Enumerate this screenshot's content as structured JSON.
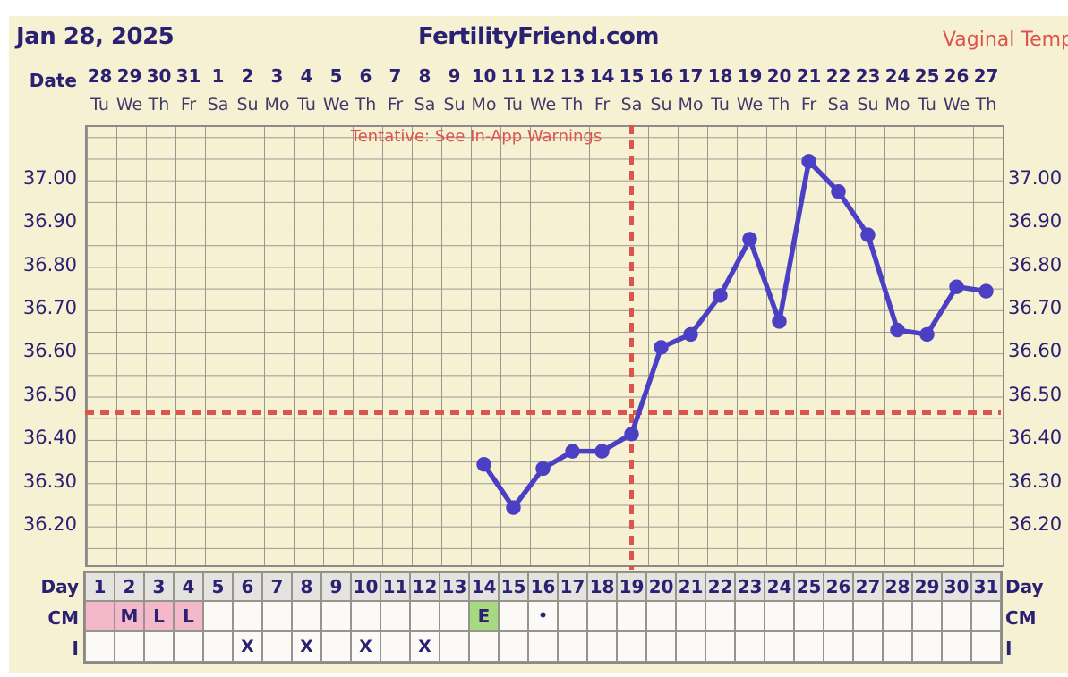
{
  "header": {
    "date": "Jan 28, 2025",
    "site_title": "FertilityFriend.com",
    "temp_mode_label": "Vaginal Temp"
  },
  "warning_text": "Tentative: See In-App Warnings",
  "date_axis": {
    "label": "Date",
    "dates": [
      "28",
      "29",
      "30",
      "31",
      "1",
      "2",
      "3",
      "4",
      "5",
      "6",
      "7",
      "8",
      "9",
      "10",
      "11",
      "12",
      "13",
      "14",
      "15",
      "16",
      "17",
      "18",
      "19",
      "20",
      "21",
      "22",
      "23",
      "24",
      "25",
      "26",
      "27"
    ],
    "weekdays": [
      "Tu",
      "We",
      "Th",
      "Fr",
      "Sa",
      "Su",
      "Mo",
      "Tu",
      "We",
      "Th",
      "Fr",
      "Sa",
      "Su",
      "Mo",
      "Tu",
      "We",
      "Th",
      "Fr",
      "Sa",
      "Su",
      "Mo",
      "Tu",
      "We",
      "Th",
      "Fr",
      "Sa",
      "Su",
      "Mo",
      "Tu",
      "We",
      "Th"
    ]
  },
  "chart_data": {
    "type": "line",
    "title": "FertilityFriend.com",
    "xlabel": "Day",
    "ylabel": "Vaginal Temp",
    "x_range_days": [
      1,
      31
    ],
    "ylim": [
      36.12,
      37.12
    ],
    "grid": true,
    "y_ticks": [
      "37.00",
      "36.90",
      "36.80",
      "36.70",
      "36.60",
      "36.50",
      "36.40",
      "36.30",
      "36.20"
    ],
    "series": [
      {
        "name": "Vaginal Temp",
        "points": [
          {
            "day": 14,
            "temp": 36.34
          },
          {
            "day": 15,
            "temp": 36.24
          },
          {
            "day": 16,
            "temp": 36.33
          },
          {
            "day": 17,
            "temp": 36.37
          },
          {
            "day": 18,
            "temp": 36.37
          },
          {
            "day": 19,
            "temp": 36.41
          },
          {
            "day": 20,
            "temp": 36.61
          },
          {
            "day": 21,
            "temp": 36.64
          },
          {
            "day": 22,
            "temp": 36.73
          },
          {
            "day": 23,
            "temp": 36.86
          },
          {
            "day": 24,
            "temp": 36.67
          },
          {
            "day": 25,
            "temp": 37.04
          },
          {
            "day": 26,
            "temp": 36.97
          },
          {
            "day": 27,
            "temp": 36.87
          },
          {
            "day": 28,
            "temp": 36.65
          },
          {
            "day": 29,
            "temp": 36.64
          },
          {
            "day": 30,
            "temp": 36.75
          },
          {
            "day": 31,
            "temp": 36.74
          }
        ]
      }
    ],
    "coverline_temp": 36.46,
    "ovulation_line_day": 19
  },
  "bottom_table": {
    "day_label": "Day",
    "cm_label": "CM",
    "i_label": "I",
    "day_numbers": [
      "1",
      "2",
      "3",
      "4",
      "5",
      "6",
      "7",
      "8",
      "9",
      "10",
      "11",
      "12",
      "13",
      "14",
      "15",
      "16",
      "17",
      "18",
      "19",
      "20",
      "21",
      "22",
      "23",
      "24",
      "25",
      "26",
      "27",
      "28",
      "29",
      "30",
      "31"
    ],
    "cm_entries": {
      "2": "M",
      "3": "L",
      "4": "L",
      "14": "E",
      "16": "•"
    },
    "cm_pink_days": [
      1,
      2,
      3,
      4
    ],
    "cm_green_days": [
      14
    ],
    "intercourse_mark": "X",
    "intercourse_days": [
      6,
      8,
      10,
      12
    ]
  },
  "colors": {
    "background": "#f7f1d4",
    "navy_text": "#2b2173",
    "accent_red": "#dc544c",
    "line_purple": "#4b3fc4",
    "grid_gray": "#9a978f",
    "coverline_red": "#d95550",
    "day_header_bg": "#e4e3e0",
    "cm_pink": "#f3b8ca",
    "cm_green": "#a7da80",
    "cell_bg": "#fbfaf6"
  }
}
